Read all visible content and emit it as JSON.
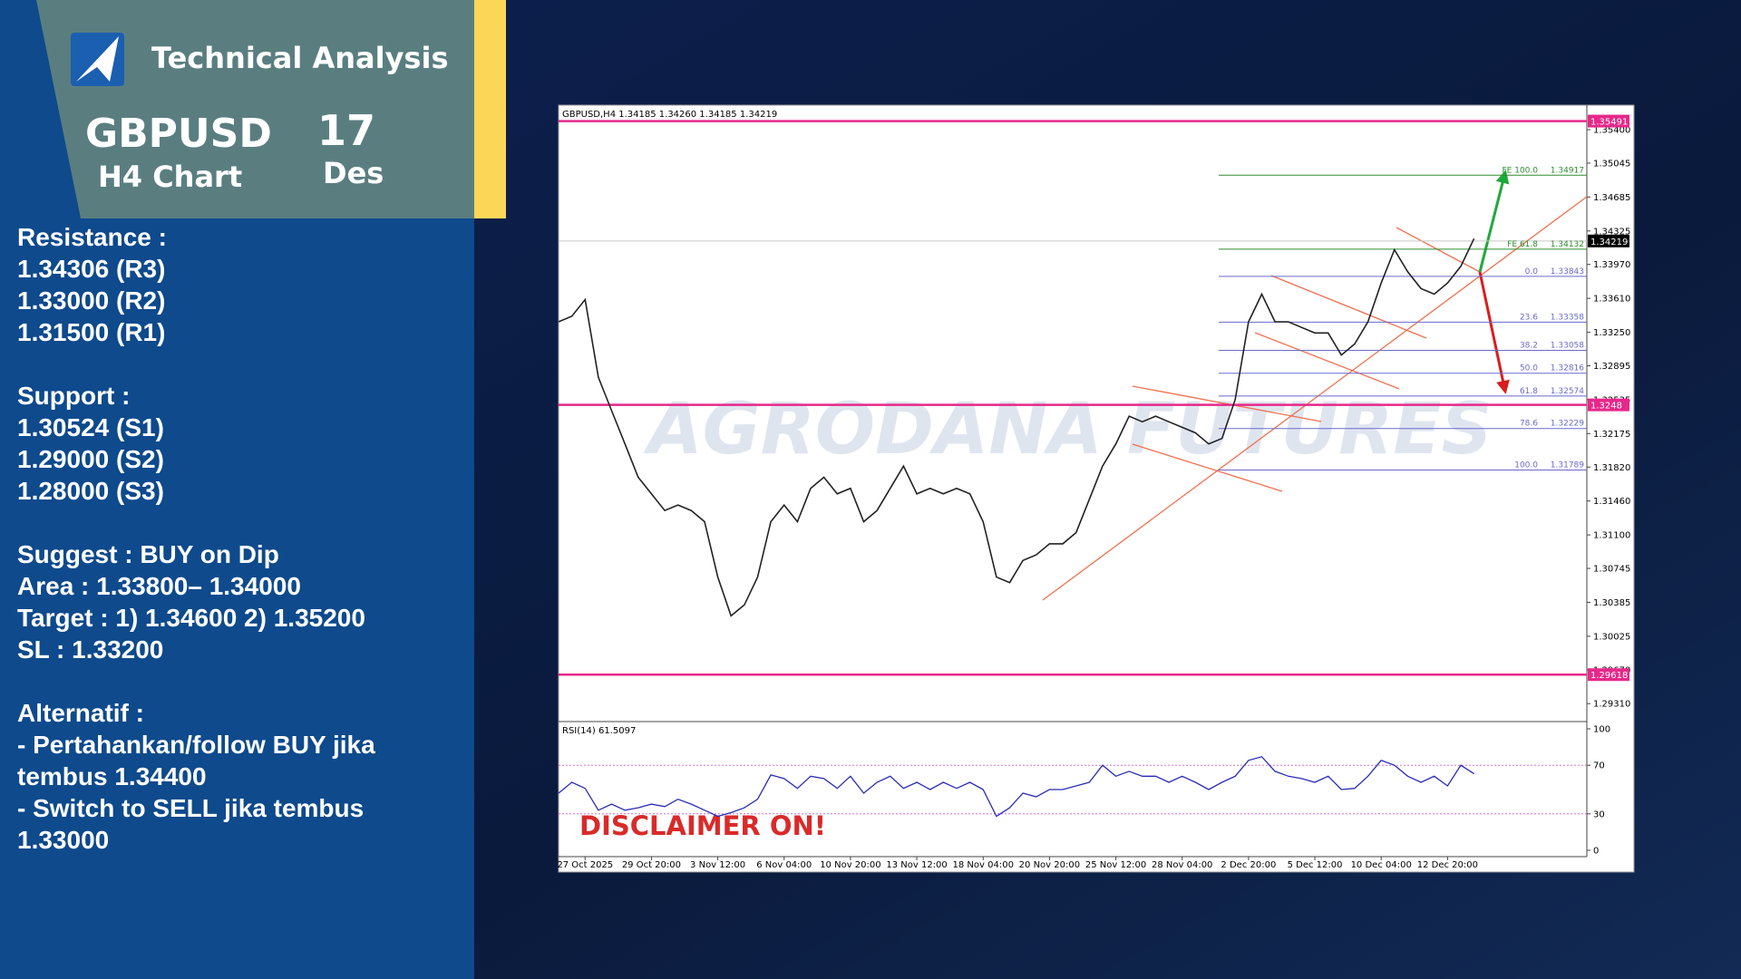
{
  "header": {
    "title": "Technical Analysis",
    "pair": "GBPUSD",
    "timeframe": "H4 Chart",
    "day": "17",
    "month": "Des"
  },
  "analysis": [
    {
      "title": "Resistance :",
      "lines": [
        "1.34306 (R3)",
        "1.33000 (R2)",
        "1.31500 (R1)"
      ]
    },
    {
      "title": "Support :",
      "lines": [
        "1.30524 (S1)",
        "1.29000 (S2)",
        "1.28000 (S3)"
      ]
    },
    {
      "title": "Suggest :  BUY on Dip",
      "lines": [
        "Area : 1.33800– 1.34000",
        "Target : 1) 1.34600 2) 1.35200",
        "SL : 1.33200"
      ]
    },
    {
      "title": "Alternatif :",
      "lines": [
        "- Pertahankan/follow BUY jika",
        "tembus 1.34400",
        "- Switch to SELL jika tembus",
        "1.33000"
      ]
    }
  ],
  "chart_data": {
    "type": "line",
    "header": "GBPUSD,H4  1.34185 1.34260 1.34185 1.34219",
    "watermark": "AGRODANA FUTURES",
    "disclaimer": "DISCLAIMER ON!",
    "color": "#222222",
    "x": [
      0,
      2,
      4,
      6,
      8,
      10,
      12,
      14,
      16,
      18,
      20,
      22,
      24,
      26,
      28,
      30,
      32,
      34,
      36,
      38,
      40,
      42,
      44,
      46,
      48,
      50,
      52,
      54,
      56,
      58,
      60,
      62,
      64,
      66,
      68,
      70,
      72,
      74,
      76,
      78,
      80,
      82,
      84,
      86,
      88,
      90,
      92,
      94,
      96,
      98,
      100,
      102,
      104,
      106,
      108,
      110,
      112,
      114,
      116,
      118,
      120,
      122,
      124,
      126,
      128,
      130,
      132,
      134,
      136,
      138
    ],
    "values": [
      1.33361,
      1.3342,
      1.33597,
      1.32772,
      1.32419,
      1.32066,
      1.31712,
      1.31536,
      1.31359,
      1.31418,
      1.31359,
      1.31241,
      1.30653,
      1.30241,
      1.30358,
      1.30653,
      1.31241,
      1.31418,
      1.31241,
      1.31595,
      1.31712,
      1.31536,
      1.31595,
      1.31241,
      1.31359,
      1.31595,
      1.3183,
      1.31536,
      1.31595,
      1.31536,
      1.31595,
      1.31536,
      1.31241,
      1.30653,
      1.30594,
      1.3083,
      1.30889,
      1.31006,
      1.31006,
      1.31124,
      1.31477,
      1.3183,
      1.32066,
      1.3236,
      1.32301,
      1.3236,
      1.32301,
      1.32242,
      1.32183,
      1.32066,
      1.32124,
      1.32537,
      1.33361,
      1.33655,
      1.33361,
      1.33361,
      1.33302,
      1.33243,
      1.33243,
      1.33008,
      1.33126,
      1.33361,
      1.33773,
      1.34126,
      1.33891,
      1.33714,
      1.33655,
      1.33773,
      1.3395,
      1.34244
    ],
    "xlim": [
      0,
      155
    ],
    "xticks": [
      {
        "value": 4,
        "label": "27 Oct 2025"
      },
      {
        "value": 14,
        "label": "29 Oct 20:00"
      },
      {
        "value": 24,
        "label": "3 Nov 12:00"
      },
      {
        "value": 34,
        "label": "6 Nov 04:00"
      },
      {
        "value": 44,
        "label": "10 Nov 20:00"
      },
      {
        "value": 54,
        "label": "13 Nov 12:00"
      },
      {
        "value": 64,
        "label": "18 Nov 04:00"
      },
      {
        "value": 74,
        "label": "20 Nov 20:00"
      },
      {
        "value": 84,
        "label": "25 Nov 12:00"
      },
      {
        "value": 94,
        "label": "28 Nov 04:00"
      },
      {
        "value": 104,
        "label": "2 Dec 20:00"
      },
      {
        "value": 114,
        "label": "5 Dec 12:00"
      },
      {
        "value": 124,
        "label": "10 Dec 04:00"
      },
      {
        "value": 134,
        "label": "12 Dec 20:00"
      }
    ],
    "ylim": [
      1.2912,
      1.3566
    ],
    "yticks": [
      {
        "value": 1.354,
        "label": "1.35400"
      },
      {
        "value": 1.35045,
        "label": "1.35045"
      },
      {
        "value": 1.34685,
        "label": "1.34685"
      },
      {
        "value": 1.34325,
        "label": "1.34325"
      },
      {
        "value": 1.3397,
        "label": "1.33970"
      },
      {
        "value": 1.3361,
        "label": "1.33610"
      },
      {
        "value": 1.3325,
        "label": "1.33250"
      },
      {
        "value": 1.32895,
        "label": "1.32895"
      },
      {
        "value": 1.32535,
        "label": "1.32535"
      },
      {
        "value": 1.32175,
        "label": "1.32175"
      },
      {
        "value": 1.3182,
        "label": "1.31820"
      },
      {
        "value": 1.3146,
        "label": "1.31460"
      },
      {
        "value": 1.311,
        "label": "1.31100"
      },
      {
        "value": 1.30745,
        "label": "1.30745"
      },
      {
        "value": 1.30385,
        "label": "1.30385"
      },
      {
        "value": 1.30025,
        "label": "1.30025"
      },
      {
        "value": 1.2967,
        "label": "1.29670"
      },
      {
        "value": 1.2931,
        "label": "1.29310"
      }
    ],
    "levels": [
      1.35491,
      1.3248,
      1.29618
    ],
    "level_color": "#e6288a",
    "current_price": 1.34219,
    "fib_levels": [
      {
        "level": "FE 100.0",
        "price": 1.34917,
        "color": "#2e8b2e"
      },
      {
        "level": "FE 61.8",
        "price": 1.34132,
        "color": "#2e8b2e"
      },
      {
        "level": "0.0",
        "price": 1.33843,
        "color": "#6a6acd"
      },
      {
        "level": "23.6",
        "price": 1.33358,
        "color": "#6a6acd"
      },
      {
        "level": "38.2",
        "price": 1.33058,
        "color": "#6a6acd"
      },
      {
        "level": "50.0",
        "price": 1.32816,
        "color": "#6a6acd"
      },
      {
        "level": "61.8",
        "price": 1.32574,
        "color": "#6a6acd"
      },
      {
        "level": "78.6",
        "price": 1.32229,
        "color": "#6a6acd"
      },
      {
        "level": "100.0",
        "price": 1.31789,
        "color": "#6a6acd"
      }
    ],
    "rsi": {
      "label": "RSI(14) 61.5097",
      "color": "#2b2bb8",
      "values": [
        47,
        56,
        51,
        33,
        38,
        33,
        35,
        38,
        36,
        42,
        38,
        33,
        28,
        31,
        35,
        42,
        62,
        59,
        51,
        61,
        59,
        51,
        61,
        47,
        56,
        61,
        51,
        56,
        50,
        56,
        51,
        56,
        50,
        28,
        35,
        47,
        44,
        50,
        50,
        53,
        56,
        70,
        61,
        65,
        61,
        61,
        56,
        61,
        56,
        50,
        56,
        61,
        74,
        77,
        65,
        61,
        59,
        56,
        61,
        50,
        51,
        61,
        74,
        70,
        61,
        56,
        61,
        53,
        70,
        63
      ],
      "ylim": [
        0,
        100
      ],
      "yticks": [
        100,
        70,
        30,
        0
      ],
      "dotted": [
        70,
        30
      ]
    }
  }
}
